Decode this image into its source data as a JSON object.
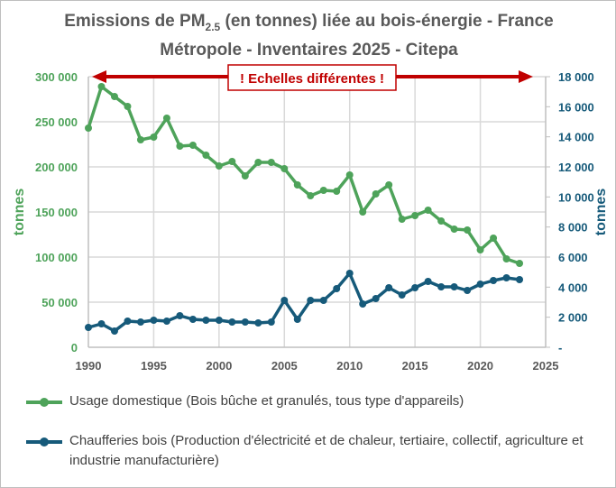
{
  "title": {
    "line1_pre": "Emissions de PM",
    "subscript": "2.5",
    "line1_post": " (en tonnes) liée au bois-énergie - France",
    "line2": "Métropole - Inventaires 2025 - Citepa"
  },
  "annotation": "! Echelles différentes !",
  "colors": {
    "domestic": "#4ea35a",
    "chaufferies": "#165a7a",
    "annotation": "#c00000",
    "grid": "#d9d9d9"
  },
  "chart_data": {
    "type": "line",
    "x": [
      1990,
      1991,
      1992,
      1993,
      1994,
      1995,
      1996,
      1997,
      1998,
      1999,
      2000,
      2001,
      2002,
      2003,
      2004,
      2005,
      2006,
      2007,
      2008,
      2009,
      2010,
      2011,
      2012,
      2013,
      2014,
      2015,
      2016,
      2017,
      2018,
      2019,
      2020,
      2021,
      2022,
      2023
    ],
    "xlim": [
      1990,
      2025
    ],
    "xticks": [
      "1990",
      "1995",
      "2000",
      "2005",
      "2010",
      "2015",
      "2020",
      "2025"
    ],
    "y_left": {
      "label": "tonnes",
      "ylim": [
        0,
        300000
      ],
      "ticks": [
        "0",
        "50 000",
        "100 000",
        "150 000",
        "200 000",
        "250 000",
        "300 000"
      ]
    },
    "y_right": {
      "label": "tonnes",
      "ylim": [
        0,
        18000
      ],
      "ticks": [
        "-",
        "2 000",
        "4 000",
        "6 000",
        "8 000",
        "10 000",
        "12 000",
        "14 000",
        "16 000",
        "18 000"
      ]
    },
    "grid": true,
    "legend_position": "bottom",
    "series": [
      {
        "name": "Usage domestique (Bois bûche et granulés, tous type d'appareils)",
        "axis": "left",
        "values": [
          243000,
          289000,
          278000,
          267000,
          230000,
          233000,
          254000,
          223000,
          224000,
          213000,
          201000,
          206000,
          190000,
          205000,
          205000,
          198000,
          180000,
          168000,
          174000,
          173000,
          191000,
          150000,
          170000,
          180000,
          142000,
          146000,
          152000,
          140000,
          131000,
          130000,
          108000,
          121000,
          98000,
          93000
        ]
      },
      {
        "name": "Chaufferies bois (Production d'électricité et de chaleur, tertiaire, collectif, agriculture et industrie manufacturière)",
        "axis": "right",
        "values": [
          1320,
          1560,
          1080,
          1740,
          1680,
          1800,
          1740,
          2100,
          1860,
          1800,
          1800,
          1680,
          1680,
          1620,
          1680,
          3120,
          1860,
          3120,
          3120,
          3900,
          4920,
          2880,
          3240,
          3960,
          3480,
          3960,
          4380,
          4020,
          4020,
          3780,
          4200,
          4440,
          4620,
          4500
        ]
      }
    ]
  }
}
